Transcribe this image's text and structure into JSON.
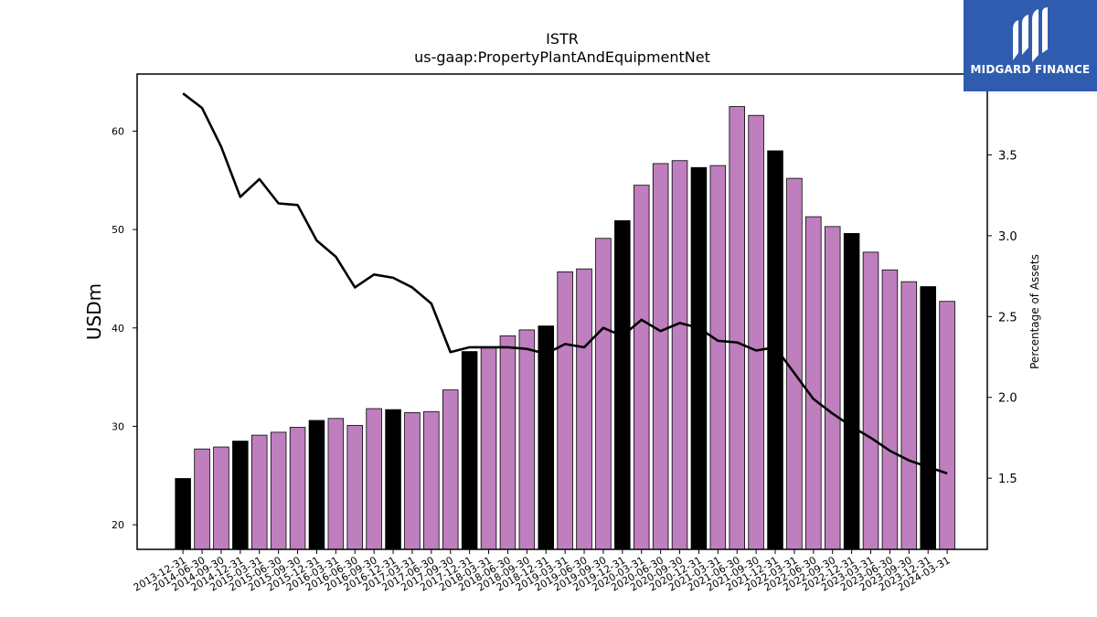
{
  "chart_data": {
    "type": "bar+line",
    "title": "ISTR",
    "subtitle": "us-gaap:PropertyPlantAndEquipmentNet",
    "ylabel": "USDm",
    "y2label": "Percentage of Assets",
    "ylim": [
      17.5,
      65.8
    ],
    "y2lim": [
      1.06,
      4.0
    ],
    "yticks": [
      20,
      30,
      40,
      50,
      60
    ],
    "y2ticks": [
      1.5,
      2.0,
      2.5,
      3.0,
      3.5
    ],
    "categories": [
      "2013-12-31",
      "2014-06-30",
      "2014-09-30",
      "2014-12-31",
      "2015-03-31",
      "2015-06-30",
      "2015-09-30",
      "2015-12-31",
      "2016-03-31",
      "2016-06-30",
      "2016-09-30",
      "2016-12-31",
      "2017-03-31",
      "2017-06-30",
      "2017-09-30",
      "2017-12-31",
      "2018-03-31",
      "2018-06-30",
      "2018-09-30",
      "2018-12-31",
      "2019-03-31",
      "2019-06-30",
      "2019-09-30",
      "2019-12-31",
      "2020-03-31",
      "2020-06-30",
      "2020-09-30",
      "2020-12-31",
      "2021-03-31",
      "2021-06-30",
      "2021-09-30",
      "2021-12-31",
      "2022-03-31",
      "2022-06-30",
      "2022-09-30",
      "2022-12-31",
      "2023-03-31",
      "2023-06-30",
      "2023-09-30",
      "2023-12-31",
      "2024-03-31"
    ],
    "series": [
      {
        "kind": "bar",
        "values": [
          24.7,
          27.7,
          27.9,
          28.5,
          29.1,
          29.4,
          29.9,
          30.6,
          30.8,
          30.1,
          31.8,
          31.7,
          31.4,
          31.5,
          33.7,
          37.6,
          38.0,
          39.2,
          39.8,
          40.2,
          45.7,
          46.0,
          49.1,
          50.9,
          54.5,
          56.7,
          57.0,
          56.3,
          56.5,
          62.5,
          61.6,
          58.0,
          55.2,
          51.3,
          50.3,
          49.6,
          47.7,
          45.9,
          44.7,
          44.2,
          42.7
        ]
      },
      {
        "kind": "line",
        "axis": "right",
        "values": [
          3.88,
          3.79,
          3.55,
          3.24,
          3.35,
          3.2,
          3.19,
          2.97,
          2.87,
          2.68,
          2.76,
          2.74,
          2.68,
          2.58,
          2.28,
          2.31,
          2.31,
          2.31,
          2.3,
          2.27,
          2.33,
          2.31,
          2.43,
          2.38,
          2.48,
          2.41,
          2.46,
          2.43,
          2.35,
          2.34,
          2.29,
          2.31,
          2.15,
          1.99,
          1.9,
          1.82,
          1.75,
          1.67,
          1.61,
          1.57,
          1.53
        ]
      }
    ],
    "colors": {
      "bar": "#bf7fbf",
      "bar_quarter_end": "#000000",
      "line": "#000000"
    },
    "grid": false,
    "legend": "none"
  },
  "logo": {
    "text": "MIDGARD FINANCE",
    "background": "#2f5cae"
  }
}
